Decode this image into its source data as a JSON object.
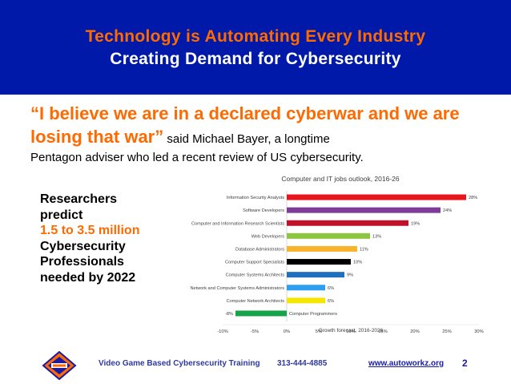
{
  "slide": {
    "title_line1": "Technology is Automating Every Industry",
    "title_line2": "Creating Demand for Cybersecurity",
    "quote_part1": "“I believe we are in a declared cyberwar and we are losing that war”",
    "quote_part2": " said Michael Bayer, a longtime",
    "quote_part3": "Pentagon adviser who led a recent review of US cybersecurity.",
    "side_line1": "Researchers",
    "side_line2": "predict",
    "side_line3": "1.5 to 3.5 million",
    "side_line4": "Cybersecurity",
    "side_line5": "Professionals",
    "side_line6": "needed by 2022",
    "colors": {
      "banner": "#0019a8",
      "accent": "#ff6a00"
    }
  },
  "footer": {
    "tagline": "Video Game Based Cybersecurity Training",
    "phone": "313-444-4885",
    "website": "www.autoworkz.org",
    "page_number": "2",
    "logo_icon": "autoworkz-logo-icon"
  },
  "chart_data": {
    "type": "bar",
    "orientation": "horizontal",
    "title": "Computer and IT jobs outlook, 2016-26",
    "xlabel": "Growth forecast, 2016-2026",
    "xlim": [
      -10,
      30
    ],
    "xticks": [
      "-10%",
      "-5%",
      "0%",
      "5%",
      "10%",
      "15%",
      "20%",
      "25%",
      "30%"
    ],
    "categories": [
      "Information Security Analysts",
      "Software Developers",
      "Computer and Information Research Scientists",
      "Web Developers",
      "Database Administrators",
      "Computer Support Specialists",
      "Computer Systems Architects",
      "Network and Computer Systems Administrators",
      "Computer Network Architects",
      "Computer Programmers"
    ],
    "values": [
      28,
      24,
      19,
      13,
      11,
      10,
      9,
      6,
      6,
      -8
    ],
    "value_labels": [
      "28%",
      "24%",
      "19%",
      "13%",
      "11%",
      "10%",
      "9%",
      "6%",
      "6%",
      "-8%"
    ],
    "colors": [
      "#e8161b",
      "#7d3c98",
      "#c0102a",
      "#8dc63f",
      "#f7b42c",
      "#000000",
      "#1f6fbf",
      "#2e9ff0",
      "#f3e600",
      "#16a34a"
    ],
    "grid": false,
    "legend": "none"
  }
}
